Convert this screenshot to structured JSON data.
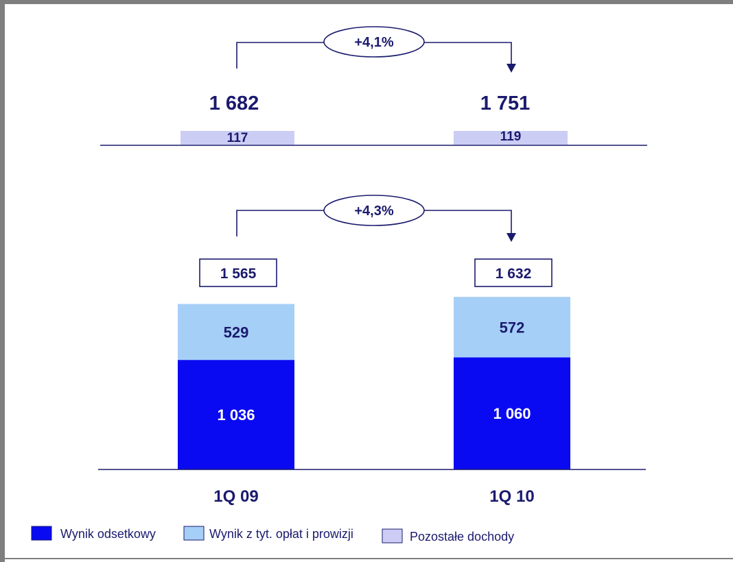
{
  "chart_data": [
    {
      "type": "bar",
      "categories": [
        "1Q 09",
        "1Q 10"
      ],
      "totals": [
        "1 682",
        "1 751"
      ],
      "series": [
        {
          "name": "Pozostałe dochody",
          "values": [
            117,
            119
          ],
          "labels": [
            "117",
            "119"
          ]
        }
      ],
      "growth_label": "+4,1%"
    },
    {
      "type": "bar",
      "stacked": true,
      "categories": [
        "1Q 09",
        "1Q 10"
      ],
      "totals": [
        "1 565",
        "1 632"
      ],
      "series": [
        {
          "name": "Wynik odsetkowy",
          "values": [
            1036,
            1060
          ],
          "labels": [
            "1 036",
            "1 060"
          ]
        },
        {
          "name": "Wynik z tyt. opłat i prowizji",
          "values": [
            529,
            572
          ],
          "labels": [
            "529",
            "572"
          ]
        }
      ],
      "growth_label": "+4,3%"
    }
  ],
  "legend": [
    {
      "label": "Wynik odsetkowy",
      "color": "#0a0af2"
    },
    {
      "label": "Wynik z tyt. opłat i prowizji",
      "color": "#a6cff7"
    },
    {
      "label": "Pozostałe dochody",
      "color": "#cccdf4"
    }
  ],
  "colors": {
    "interest": "#0a0af2",
    "fees": "#a6cff7",
    "other": "#cccdf4",
    "text": "#1a1a6e",
    "frame": "#7f7f7f"
  }
}
